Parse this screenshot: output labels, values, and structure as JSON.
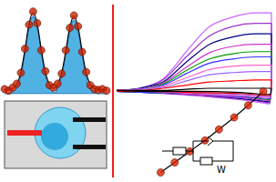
{
  "chart_data": [
    {
      "type": "line",
      "tick_labels": false,
      "xlim": [
        0,
        100
      ],
      "ylim": [
        0,
        1.15
      ],
      "x": [
        0,
        4,
        8,
        12,
        16,
        20,
        24,
        28,
        32,
        36,
        40,
        44,
        48,
        52,
        56,
        60,
        64,
        68,
        72,
        76,
        80,
        84,
        88,
        92,
        96,
        100
      ],
      "series": [
        {
          "type": "area",
          "color": "#3fa9e0",
          "values": [
            0,
            0,
            0.02,
            0.07,
            0.23,
            0.52,
            0.85,
            1.0,
            0.85,
            0.52,
            0.23,
            0.07,
            0.02,
            0,
            0,
            0,
            0,
            0,
            0,
            0,
            0,
            0,
            0,
            0,
            0,
            0
          ]
        },
        {
          "type": "area",
          "color": "#3fa9e0",
          "values": [
            0,
            0,
            0,
            0,
            0,
            0,
            0,
            0,
            0,
            0,
            0,
            0,
            0,
            0.07,
            0.22,
            0.5,
            0.81,
            0.95,
            0.81,
            0.5,
            0.22,
            0.07,
            0.02,
            0,
            0,
            0
          ]
        },
        {
          "type": "line",
          "color": "#000000",
          "values": [
            0.05,
            0.05,
            0.07,
            0.12,
            0.28,
            0.57,
            0.9,
            1.05,
            0.9,
            0.57,
            0.28,
            0.12,
            0.07,
            0.12,
            0.27,
            0.55,
            0.86,
            1.0,
            0.86,
            0.55,
            0.27,
            0.12,
            0.07,
            0.05,
            0.05,
            0.05
          ]
        },
        {
          "type": "scatter",
          "marker": "circle",
          "color": "#cc2200",
          "values": [
            0.06,
            0.04,
            0.08,
            0.13,
            0.27,
            0.58,
            0.89,
            1.06,
            0.91,
            0.56,
            0.29,
            0.11,
            0.08,
            0.13,
            0.26,
            0.56,
            0.85,
            1.01,
            0.87,
            0.54,
            0.28,
            0.11,
            0.06,
            0.05,
            0.06,
            0.04
          ]
        }
      ]
    },
    {
      "type": "line",
      "tick_labels": false,
      "xlim": [
        0,
        1
      ],
      "ylim": [
        0,
        1
      ],
      "x": [
        0,
        0.15,
        0.3,
        0.45,
        0.6,
        0.75,
        0.9,
        1,
        0.99,
        0.8,
        0.5,
        0.2,
        0
      ],
      "series": [
        {
          "color": "#cc66ff",
          "values": [
            0.18,
            0.2,
            0.29,
            0.55,
            0.79,
            0.88,
            0.92,
            0.92,
            0.05,
            0.09,
            0.13,
            0.16,
            0.17
          ]
        },
        {
          "color": "#9933cc",
          "values": [
            0.18,
            0.2,
            0.28,
            0.5,
            0.7,
            0.79,
            0.82,
            0.82,
            0.06,
            0.1,
            0.14,
            0.16,
            0.17
          ]
        },
        {
          "color": "#000080",
          "values": [
            0.18,
            0.2,
            0.26,
            0.45,
            0.62,
            0.69,
            0.72,
            0.72,
            0.07,
            0.1,
            0.14,
            0.16,
            0.17
          ]
        },
        {
          "color": "#cc33cc",
          "values": [
            0.18,
            0.19,
            0.25,
            0.4,
            0.54,
            0.6,
            0.62,
            0.62,
            0.08,
            0.11,
            0.14,
            0.16,
            0.17
          ]
        },
        {
          "color": "#009900",
          "values": [
            0.18,
            0.19,
            0.24,
            0.37,
            0.48,
            0.53,
            0.55,
            0.55,
            0.09,
            0.12,
            0.15,
            0.16,
            0.17
          ]
        },
        {
          "color": "#3333ff",
          "values": [
            0.18,
            0.19,
            0.23,
            0.34,
            0.44,
            0.48,
            0.5,
            0.5,
            0.1,
            0.12,
            0.15,
            0.16,
            0.17
          ]
        },
        {
          "color": "#ff66cc",
          "values": [
            0.18,
            0.19,
            0.22,
            0.3,
            0.38,
            0.41,
            0.42,
            0.42,
            0.11,
            0.13,
            0.15,
            0.17,
            0.17
          ]
        },
        {
          "color": "#9966ff",
          "values": [
            0.18,
            0.19,
            0.21,
            0.27,
            0.33,
            0.35,
            0.36,
            0.36,
            0.12,
            0.14,
            0.16,
            0.17,
            0.17
          ]
        },
        {
          "color": "#ff0000",
          "values": [
            0.18,
            0.18,
            0.2,
            0.23,
            0.26,
            0.27,
            0.28,
            0.28,
            0.13,
            0.15,
            0.16,
            0.17,
            0.17
          ]
        },
        {
          "color": "#000000",
          "values": [
            0.18,
            0.18,
            0.18,
            0.19,
            0.2,
            0.2,
            0.2,
            0.2,
            0.14,
            0.16,
            0.17,
            0.17,
            0.18
          ]
        }
      ]
    },
    {
      "type": "line",
      "tick_labels": false,
      "xlim": [
        0,
        1
      ],
      "ylim": [
        0,
        1
      ],
      "x": [
        0.05,
        0.17,
        0.3,
        0.43,
        0.55,
        0.68,
        0.8,
        0.93
      ],
      "series": [
        {
          "type": "line",
          "color": "#000000",
          "values": [
            0.05,
            0.15,
            0.26,
            0.37,
            0.48,
            0.6,
            0.72,
            0.86
          ]
        },
        {
          "type": "scatter",
          "marker": "circle",
          "color": "#dd2200",
          "values": [
            0.05,
            0.15,
            0.26,
            0.37,
            0.48,
            0.6,
            0.72,
            0.86
          ]
        }
      ],
      "annotations": [
        "W"
      ]
    }
  ]
}
